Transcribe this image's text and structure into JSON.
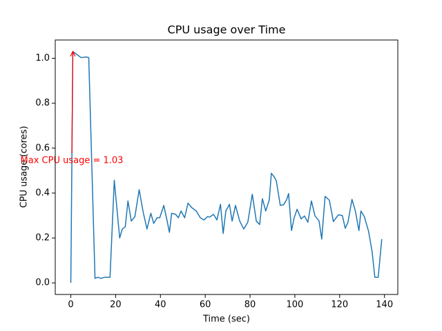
{
  "chart_data": {
    "type": "line",
    "title": "CPU usage over Time",
    "x_label": "Time (sec)",
    "y_label": "CPU usage (cores)",
    "xlim": [
      -6.95,
      145.95
    ],
    "ylim": [
      -0.0515,
      1.0815
    ],
    "xticks": [
      0,
      20,
      40,
      60,
      80,
      100,
      120,
      140
    ],
    "yticks": [
      {
        "value": 0,
        "label": "0.0"
      },
      {
        "value": 0.2,
        "label": "0.2"
      },
      {
        "value": 0.4,
        "label": "0.4"
      },
      {
        "value": 0.6,
        "label": "0.6"
      },
      {
        "value": 0.8,
        "label": "0.8"
      },
      {
        "value": 1,
        "label": "1.0"
      }
    ],
    "grid": false,
    "series": [
      {
        "name": "CPU usage",
        "color": "#1f77b4",
        "x": [
          0,
          0.9,
          4.6,
          6.8,
          8,
          10.8,
          12,
          13.5,
          15,
          17.5,
          19.4,
          21.8,
          23,
          24.3,
          25.5,
          27,
          28.6,
          30.5,
          32.3,
          34,
          35.7,
          37,
          38.5,
          39.7,
          41.5,
          42.8,
          44,
          45,
          46.8,
          48,
          49.2,
          50.8,
          52.3,
          54,
          56,
          57.8,
          59.4,
          61,
          62,
          63.7,
          65.2,
          66.8,
          68,
          69.2,
          70.8,
          72,
          73.5,
          75.4,
          77.2,
          79,
          81,
          82.8,
          84.3,
          85.5,
          87,
          88.6,
          89.5,
          90.8,
          91.7,
          93.5,
          95,
          96.3,
          97.2,
          98.5,
          99.7,
          101,
          102.8,
          104.3,
          105.8,
          107.4,
          109,
          110.8,
          112,
          113.5,
          115.4,
          117.2,
          119.4,
          121.2,
          122.5,
          123.7,
          125.5,
          127,
          128.6,
          129.5,
          131,
          132.9,
          134.5,
          135.7,
          137.2,
          138.8
        ],
        "values": [
          0,
          1.03,
          1.003,
          1.006,
          1.003,
          0.02,
          0.025,
          0.02,
          0.025,
          0.025,
          0.457,
          0.2,
          0.24,
          0.25,
          0.365,
          0.275,
          0.295,
          0.415,
          0.315,
          0.24,
          0.31,
          0.265,
          0.29,
          0.29,
          0.345,
          0.285,
          0.225,
          0.31,
          0.305,
          0.29,
          0.32,
          0.29,
          0.355,
          0.335,
          0.32,
          0.29,
          0.28,
          0.295,
          0.293,
          0.305,
          0.28,
          0.35,
          0.22,
          0.32,
          0.35,
          0.275,
          0.345,
          0.275,
          0.24,
          0.27,
          0.395,
          0.275,
          0.26,
          0.375,
          0.32,
          0.37,
          0.488,
          0.472,
          0.455,
          0.345,
          0.348,
          0.37,
          0.398,
          0.233,
          0.29,
          0.328,
          0.285,
          0.298,
          0.27,
          0.365,
          0.298,
          0.276,
          0.195,
          0.385,
          0.368,
          0.273,
          0.303,
          0.3,
          0.243,
          0.27,
          0.372,
          0.32,
          0.233,
          0.32,
          0.295,
          0.23,
          0.138,
          0.025,
          0.025,
          0.195
        ]
      }
    ],
    "annotation": {
      "text": "Max CPU usage = 1.03",
      "color": "#ff0000",
      "point_index": 1
    }
  }
}
